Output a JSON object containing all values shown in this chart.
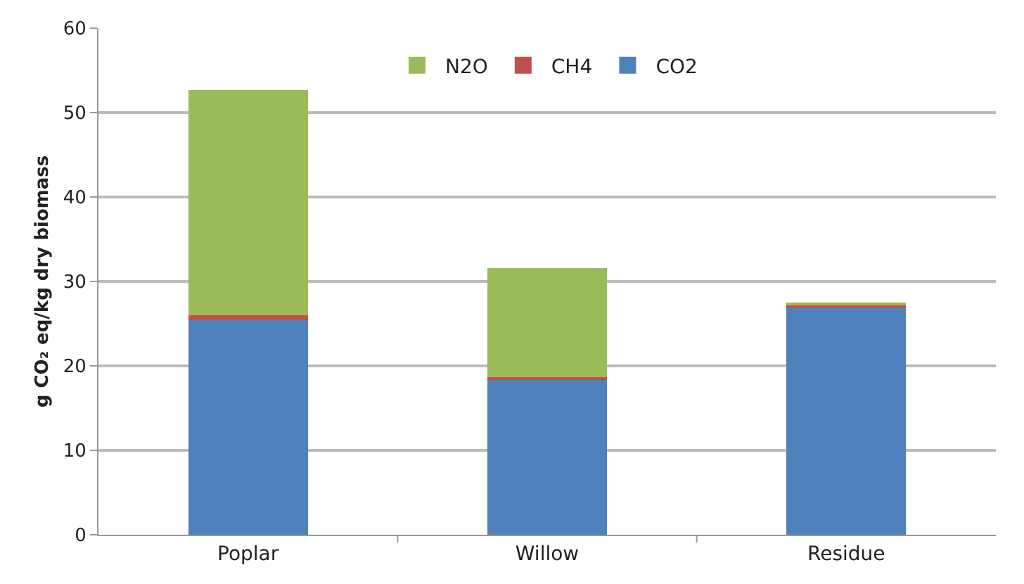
{
  "chart_data": {
    "type": "bar",
    "stacked": true,
    "ylabel": "g CO₂ eq/kg dry biomass",
    "categories": [
      "Poplar",
      "Willow",
      "Residue"
    ],
    "series": [
      {
        "name": "CO2",
        "color": "#4f81bd",
        "values": [
          25.4,
          18.3,
          26.9
        ]
      },
      {
        "name": "CH4",
        "color": "#c0504d",
        "values": [
          0.6,
          0.4,
          0.3
        ]
      },
      {
        "name": "N2O",
        "color": "#9bbb59",
        "values": [
          26.7,
          12.9,
          0.2
        ]
      }
    ],
    "ylim": [
      0,
      60
    ],
    "yticks": [
      0,
      10,
      20,
      30,
      40,
      50,
      60
    ],
    "grid": "y",
    "legend": "top"
  }
}
